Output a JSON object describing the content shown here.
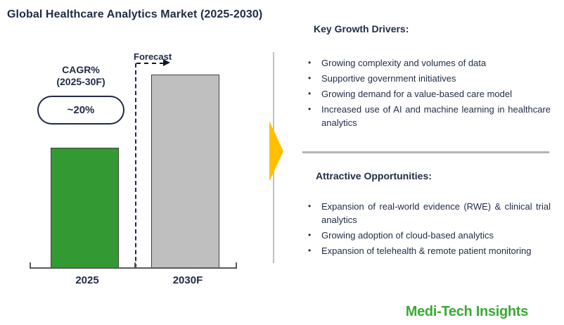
{
  "title": "Global Healthcare Analytics Market (2025-2030)",
  "chart": {
    "forecast_label": "Forecast",
    "cagr": {
      "line1": "CAGR%",
      "line2": "(2025-30F)",
      "value": "~20%"
    },
    "bars": [
      {
        "label": "2025",
        "color": "#339933"
      },
      {
        "label": "2030F",
        "color": "#BFBFBF"
      }
    ]
  },
  "chart_data": {
    "type": "bar",
    "title": "Global Healthcare Analytics Market (2025-2030)",
    "categories": [
      "2025",
      "2030F"
    ],
    "series": [
      {
        "name": "Global healthcare analytics market size (numeric values not labeled on chart)",
        "values_relative_height": [
          0.62,
          1.0
        ]
      }
    ],
    "bar_colors": [
      "#339933",
      "#BFBFBF"
    ],
    "annotations": [
      "CAGR% (2025-30F): ~20%",
      "Forecast"
    ],
    "xlabel": "",
    "ylabel": "",
    "value_axis_shown": false,
    "gridlines": false,
    "legend_position": "none"
  },
  "growth_drivers": {
    "heading": "Key Growth Drivers:",
    "bullets": [
      "Growing complexity and volumes of data",
      "Supportive government initiatives",
      "Growing demand for a value-based care model",
      "Increased use of AI and machine learning in healthcare analytics"
    ]
  },
  "opportunities": {
    "heading": "Attractive Opportunities:",
    "bullets": [
      "Expansion of real-world evidence (RWE) & clinical trial analytics",
      "Growing adoption of cloud-based analytics",
      "Expansion of telehealth & remote patient monitoring"
    ]
  },
  "logo": {
    "text": "Medi-Tech Insights"
  },
  "colors": {
    "text_navy": "#1F2B45",
    "bar_green": "#339933",
    "bar_gray": "#BFBFBF",
    "arrow_gold": "#FFC000",
    "logo_green": "#3AAA35",
    "divider_gray": "#BFBFBF"
  }
}
